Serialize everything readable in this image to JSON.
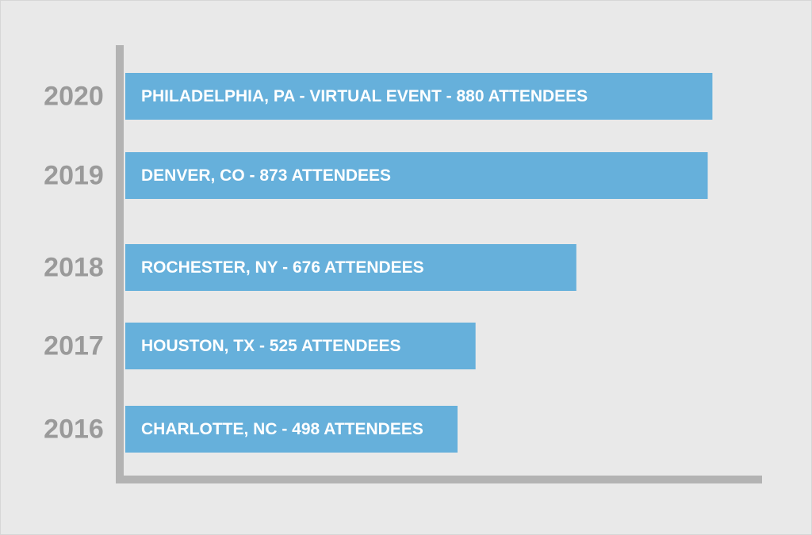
{
  "chart_data": {
    "type": "bar",
    "orientation": "horizontal",
    "categories": [
      "2020",
      "2019",
      "2018",
      "2017",
      "2016"
    ],
    "values": [
      880,
      873,
      676,
      525,
      498
    ],
    "bar_labels": [
      "PHILADELPHIA, PA - VIRTUAL EVENT - 880 ATTENDEES",
      "DENVER, CO - 873 ATTENDEES",
      "ROCHESTER, NY - 676 ATTENDEES",
      "HOUSTON, TX - 525 ATTENDEES",
      "CHARLOTTE, NC - 498 ATTENDEES"
    ],
    "title": "",
    "xlabel": "",
    "ylabel": "",
    "xlim": [
      0,
      1000
    ],
    "grid": false,
    "legend": "none"
  },
  "colors": {
    "background": "#e9e9e9",
    "bar": "#66b0db",
    "axis": "#b3b3b3",
    "year_text": "#9a9a9a",
    "bar_text": "#ffffff"
  }
}
